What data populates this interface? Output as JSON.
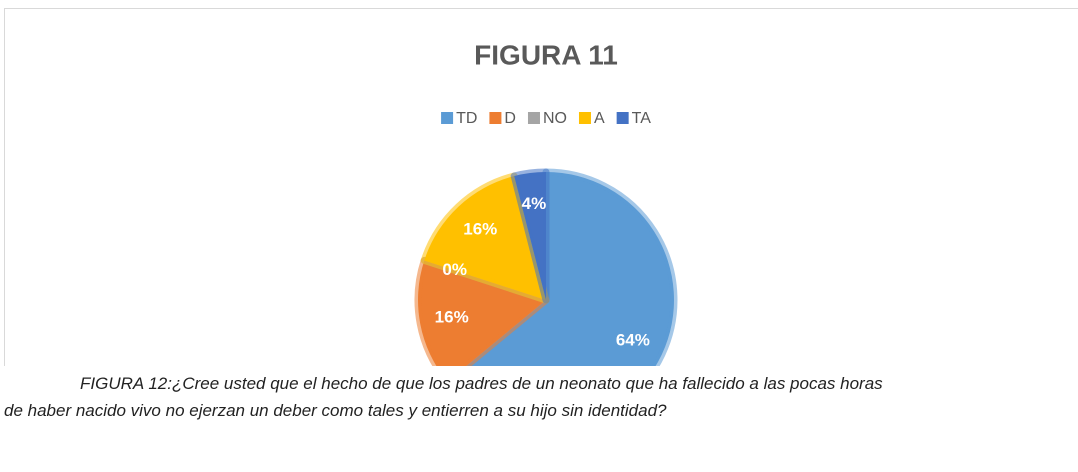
{
  "chart_data": {
    "type": "pie",
    "title": "FIGURA 11",
    "categories": [
      "TD",
      "D",
      "NO",
      "A",
      "TA"
    ],
    "values": [
      64,
      16,
      0,
      16,
      4
    ],
    "value_labels": [
      "64%",
      "16%",
      "0%",
      "16%",
      "4%"
    ],
    "colors": [
      "#5b9bd5",
      "#ed7d31",
      "#a5a5a5",
      "#ffc000",
      "#4472c4"
    ],
    "legend": "top"
  },
  "caption": {
    "lines": [
      "FIGURA 12:¿Cree usted que el hecho de que los padres de un neonato que ha fallecido a las pocas horas",
      "de haber nacido vivo no ejerzan un deber como tales y entierren a su hijo sin identidad?"
    ]
  }
}
